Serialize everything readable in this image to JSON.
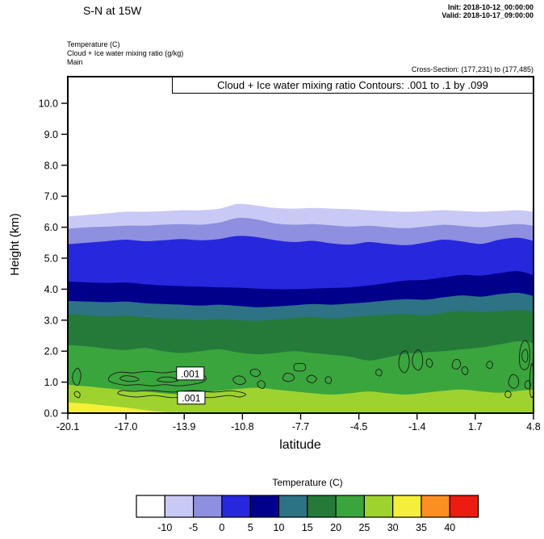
{
  "header": {
    "title": "S-N at 15W",
    "init": "Init: 2018-10-12_00:00:00",
    "valid": "Valid: 2018-10-17_09:00:00",
    "field_temperature": "Temperature  (C)",
    "field_cloud": "Cloud + Ice water mixing ratio  (g/kg)",
    "model": "Main",
    "cross_section": "Cross-Section: (177,231) to (177,485)"
  },
  "plot": {
    "contour_box_title": "Cloud + Ice water mixing ratio Contours: .001 to .1 by .099",
    "ylabel": "Height (km)",
    "xlabel": "latitude",
    "x_tick_labels": [
      "-20.1",
      "-17.0",
      "-13.9",
      "-10.8",
      "-7.7",
      "-4.5",
      "-1.4",
      "1.7",
      "4.8"
    ],
    "y_tick_labels": [
      "0.0",
      "1.0",
      "2.0",
      "3.0",
      "4.0",
      "5.0",
      "6.0",
      "7.0",
      "8.0",
      "9.0",
      "10.0"
    ]
  },
  "colorbar": {
    "title": "Temperature  (C)",
    "tick_labels": [
      "-10",
      "-5",
      "0",
      "5",
      "10",
      "15",
      "20",
      "25",
      "30",
      "35",
      "40"
    ],
    "colors": [
      "#ffffff",
      "#c9c9f5",
      "#8f8fe0",
      "#2727dd",
      "#00008b",
      "#2e7286",
      "#257a3a",
      "#3aa53d",
      "#9ed32f",
      "#f5ef3a",
      "#fb8f22",
      "#ed1b10"
    ]
  },
  "chart_data": {
    "type": "heatmap",
    "subtype": "filled-contour-vertical-cross-section",
    "title": "Cloud + Ice water mixing ratio Contours: .001 to .1 by .099",
    "xlabel": "latitude",
    "ylabel": "Height (km)",
    "xlim": [
      -20.1,
      4.8
    ],
    "ylim": [
      0,
      10.9
    ],
    "grid": false,
    "x": [
      -20.1,
      -19,
      -18,
      -17,
      -16,
      -15,
      -14,
      -13,
      -12,
      -11,
      -10,
      -9,
      -8,
      -7,
      -6,
      -5,
      -4,
      -3,
      -2,
      -1,
      0,
      1,
      2,
      3,
      4,
      4.8
    ],
    "temperature_bands": [
      {
        "range_c": "-10 to -5",
        "color_index": 1,
        "top_km": [
          6.35,
          6.4,
          6.45,
          6.5,
          6.5,
          6.52,
          6.55,
          6.55,
          6.6,
          6.75,
          6.7,
          6.62,
          6.6,
          6.62,
          6.6,
          6.58,
          6.55,
          6.52,
          6.5,
          6.52,
          6.55,
          6.52,
          6.5,
          6.52,
          6.55,
          6.5
        ]
      },
      {
        "range_c": "-5 to 0",
        "color_index": 2,
        "top_km": [
          5.95,
          6.0,
          6.02,
          6.05,
          6.05,
          6.08,
          6.1,
          6.08,
          6.15,
          6.3,
          6.25,
          6.12,
          6.08,
          6.1,
          6.06,
          6.02,
          6.05,
          6.0,
          5.97,
          6.02,
          6.08,
          6.04,
          6.0,
          6.06,
          6.1,
          6.05
        ]
      },
      {
        "range_c": "0 to 5",
        "color_index": 3,
        "top_km": [
          5.45,
          5.5,
          5.55,
          5.6,
          5.55,
          5.58,
          5.62,
          5.58,
          5.62,
          5.72,
          5.68,
          5.58,
          5.52,
          5.56,
          5.48,
          5.44,
          5.52,
          5.46,
          5.42,
          5.5,
          5.6,
          5.54,
          5.46,
          5.6,
          5.66,
          5.56
        ]
      },
      {
        "range_c": "5 to 10",
        "color_index": 4,
        "top_km": [
          4.25,
          4.22,
          4.2,
          4.22,
          4.16,
          4.12,
          4.1,
          4.08,
          4.06,
          4.05,
          4.02,
          4.0,
          4.0,
          4.02,
          4.04,
          4.06,
          4.12,
          4.2,
          4.28,
          4.3,
          4.38,
          4.46,
          4.44,
          4.52,
          4.58,
          4.45
        ]
      },
      {
        "range_c": "10 to 15",
        "color_index": 5,
        "top_km": [
          3.62,
          3.6,
          3.58,
          3.6,
          3.55,
          3.52,
          3.5,
          3.47,
          3.5,
          3.46,
          3.42,
          3.44,
          3.48,
          3.52,
          3.5,
          3.54,
          3.58,
          3.64,
          3.68,
          3.66,
          3.74,
          3.8,
          3.76,
          3.84,
          3.88,
          3.78
        ]
      },
      {
        "range_c": "15 to 20",
        "color_index": 6,
        "top_km": [
          3.2,
          3.16,
          3.12,
          3.15,
          3.1,
          3.06,
          3.04,
          3.0,
          3.04,
          3.0,
          2.98,
          3.02,
          3.08,
          3.1,
          3.06,
          3.1,
          3.14,
          3.18,
          3.2,
          3.16,
          3.24,
          3.3,
          3.26,
          3.3,
          3.34,
          3.28
        ]
      },
      {
        "range_c": "20 to 25",
        "color_index": 7,
        "top_km": [
          2.2,
          2.15,
          2.08,
          2.04,
          2.1,
          2.0,
          1.94,
          2.0,
          2.06,
          1.96,
          1.9,
          1.94,
          2.0,
          1.94,
          1.88,
          1.82,
          1.7,
          1.8,
          1.92,
          1.96,
          2.0,
          2.06,
          2.12,
          2.22,
          2.32,
          2.26
        ]
      },
      {
        "range_c": "25 to 30",
        "color_index": 8,
        "top_km": [
          0.92,
          0.86,
          0.8,
          0.74,
          0.7,
          0.64,
          0.6,
          0.66,
          0.72,
          0.78,
          0.82,
          0.76,
          0.7,
          0.64,
          0.6,
          0.64,
          0.7,
          0.64,
          0.6,
          0.66,
          0.72,
          0.76,
          0.7,
          0.66,
          0.72,
          0.76
        ]
      },
      {
        "range_c": "30 to 35",
        "color_index": 9,
        "top_km": [
          0.35,
          0.3,
          0.24,
          0.18,
          0.1,
          0.04,
          0,
          0,
          0,
          0,
          0,
          0,
          0,
          0,
          0,
          0,
          0,
          0,
          0,
          0,
          0,
          0,
          0,
          0,
          0,
          0
        ]
      }
    ],
    "cloud_contours": {
      "value": 0.001,
      "units": "g/kg",
      "loops": [
        [
          [
            -19.75,
            0.95
          ],
          [
            -19.55,
            0.9
          ],
          [
            -19.45,
            1.05
          ],
          [
            -19.4,
            1.25
          ],
          [
            -19.55,
            1.45
          ],
          [
            -19.75,
            1.35
          ],
          [
            -19.85,
            1.15
          ]
        ],
        [
          [
            -19.7,
            0.55
          ],
          [
            -19.5,
            0.5
          ],
          [
            -19.45,
            0.62
          ],
          [
            -19.6,
            0.7
          ],
          [
            -19.75,
            0.65
          ]
        ],
        [
          [
            -17.9,
            1.05
          ],
          [
            -17.5,
            0.95
          ],
          [
            -17.0,
            0.9
          ],
          [
            -16.3,
            0.92
          ],
          [
            -15.6,
            0.88
          ],
          [
            -14.9,
            0.92
          ],
          [
            -14.2,
            0.88
          ],
          [
            -13.5,
            0.92
          ],
          [
            -12.9,
            1.0
          ],
          [
            -12.7,
            1.12
          ],
          [
            -12.9,
            1.25
          ],
          [
            -13.5,
            1.3
          ],
          [
            -14.2,
            1.35
          ],
          [
            -15.0,
            1.3
          ],
          [
            -15.8,
            1.35
          ],
          [
            -16.6,
            1.3
          ],
          [
            -17.3,
            1.32
          ],
          [
            -17.8,
            1.22
          ]
        ],
        [
          [
            -17.3,
            1.1
          ],
          [
            -16.8,
            1.02
          ],
          [
            -16.3,
            1.08
          ],
          [
            -16.6,
            1.18
          ],
          [
            -17.1,
            1.2
          ]
        ],
        [
          [
            -15.3,
            1.05
          ],
          [
            -14.7,
            1.0
          ],
          [
            -14.2,
            1.06
          ],
          [
            -14.6,
            1.16
          ],
          [
            -15.1,
            1.15
          ]
        ],
        [
          [
            -17.4,
            0.62
          ],
          [
            -16.5,
            0.52
          ],
          [
            -15.5,
            0.57
          ],
          [
            -14.5,
            0.5
          ],
          [
            -13.5,
            0.55
          ],
          [
            -12.5,
            0.5
          ],
          [
            -11.5,
            0.57
          ],
          [
            -10.9,
            0.52
          ],
          [
            -10.6,
            0.62
          ],
          [
            -11.3,
            0.72
          ],
          [
            -12.3,
            0.68
          ],
          [
            -13.4,
            0.73
          ],
          [
            -14.5,
            0.68
          ],
          [
            -15.6,
            0.73
          ],
          [
            -16.6,
            0.7
          ],
          [
            -17.2,
            0.73
          ]
        ],
        [
          [
            -11.2,
            1.0
          ],
          [
            -10.9,
            0.92
          ],
          [
            -10.6,
            1.0
          ],
          [
            -10.7,
            1.15
          ],
          [
            -11.0,
            1.2
          ],
          [
            -11.25,
            1.12
          ]
        ],
        [
          [
            -10.3,
            1.25
          ],
          [
            -10.0,
            1.18
          ],
          [
            -9.8,
            1.3
          ],
          [
            -10.0,
            1.42
          ],
          [
            -10.3,
            1.38
          ]
        ],
        [
          [
            -9.9,
            0.85
          ],
          [
            -9.65,
            0.8
          ],
          [
            -9.55,
            0.95
          ],
          [
            -9.75,
            1.05
          ],
          [
            -9.95,
            0.98
          ]
        ],
        [
          [
            -8.6,
            1.1
          ],
          [
            -8.3,
            1.02
          ],
          [
            -8.0,
            1.1
          ],
          [
            -8.1,
            1.25
          ],
          [
            -8.45,
            1.28
          ]
        ],
        [
          [
            -7.95,
            1.38
          ],
          [
            -7.45,
            1.38
          ],
          [
            -7.45,
            1.58
          ],
          [
            -7.95,
            1.58
          ]
        ],
        [
          [
            -7.3,
            1.05
          ],
          [
            -7.0,
            0.98
          ],
          [
            -6.8,
            1.1
          ],
          [
            -7.0,
            1.22
          ],
          [
            -7.25,
            1.18
          ]
        ],
        [
          [
            -6.3,
            1.0
          ],
          [
            -6.1,
            0.95
          ],
          [
            -6.0,
            1.08
          ],
          [
            -6.15,
            1.18
          ],
          [
            -6.32,
            1.12
          ]
        ],
        [
          [
            -3.6,
            1.25
          ],
          [
            -3.4,
            1.2
          ],
          [
            -3.3,
            1.32
          ],
          [
            -3.45,
            1.42
          ],
          [
            -3.62,
            1.36
          ]
        ],
        [
          [
            -2.35,
            1.45
          ],
          [
            -2.1,
            1.3
          ],
          [
            -1.9,
            1.45
          ],
          [
            -1.85,
            1.75
          ],
          [
            -2.0,
            2.0
          ],
          [
            -2.25,
            1.95
          ],
          [
            -2.4,
            1.7
          ]
        ],
        [
          [
            -1.6,
            1.5
          ],
          [
            -1.35,
            1.38
          ],
          [
            -1.15,
            1.55
          ],
          [
            -1.15,
            1.85
          ],
          [
            -1.35,
            2.05
          ],
          [
            -1.6,
            1.9
          ],
          [
            -1.68,
            1.7
          ]
        ],
        [
          [
            -0.9,
            1.55
          ],
          [
            -0.7,
            1.48
          ],
          [
            -0.6,
            1.62
          ],
          [
            -0.75,
            1.75
          ],
          [
            -0.92,
            1.7
          ]
        ],
        [
          [
            0.45,
            1.5
          ],
          [
            0.7,
            1.42
          ],
          [
            0.9,
            1.55
          ],
          [
            0.8,
            1.72
          ],
          [
            0.55,
            1.7
          ]
        ],
        [
          [
            1.0,
            1.3
          ],
          [
            1.2,
            1.24
          ],
          [
            1.3,
            1.38
          ],
          [
            1.15,
            1.5
          ],
          [
            0.98,
            1.44
          ]
        ],
        [
          [
            2.3,
            1.5
          ],
          [
            2.5,
            1.44
          ],
          [
            2.62,
            1.56
          ],
          [
            2.5,
            1.68
          ],
          [
            2.32,
            1.62
          ]
        ],
        [
          [
            4.1,
            1.5
          ],
          [
            4.35,
            1.4
          ],
          [
            4.55,
            1.55
          ],
          [
            4.6,
            1.9
          ],
          [
            4.55,
            2.2
          ],
          [
            4.35,
            2.35
          ],
          [
            4.15,
            2.2
          ],
          [
            4.05,
            1.85
          ]
        ],
        [
          [
            4.25,
            1.7
          ],
          [
            4.42,
            1.65
          ],
          [
            4.5,
            1.85
          ],
          [
            4.42,
            2.05
          ],
          [
            4.25,
            2.0
          ],
          [
            4.18,
            1.85
          ]
        ],
        [
          [
            3.5,
            0.9
          ],
          [
            3.8,
            0.8
          ],
          [
            4.0,
            0.95
          ],
          [
            3.95,
            1.15
          ],
          [
            3.7,
            1.25
          ],
          [
            3.5,
            1.1
          ]
        ],
        [
          [
            4.35,
            0.85
          ],
          [
            4.55,
            0.78
          ],
          [
            4.65,
            0.92
          ],
          [
            4.55,
            1.05
          ],
          [
            4.38,
            1.0
          ]
        ],
        [
          [
            4.65,
            0.55
          ],
          [
            4.78,
            0.6
          ],
          [
            4.78,
            1.4
          ],
          [
            4.7,
            1.6
          ],
          [
            4.62,
            1.3
          ],
          [
            4.6,
            0.85
          ]
        ],
        [
          [
            3.3,
            0.55
          ],
          [
            3.5,
            0.5
          ],
          [
            3.6,
            0.62
          ],
          [
            3.45,
            0.72
          ],
          [
            3.3,
            0.66
          ]
        ]
      ],
      "labels": [
        {
          "text": ".001",
          "lat": -13.55,
          "km": 1.28
        },
        {
          "text": ".001",
          "lat": -13.5,
          "km": 0.5
        }
      ]
    }
  }
}
